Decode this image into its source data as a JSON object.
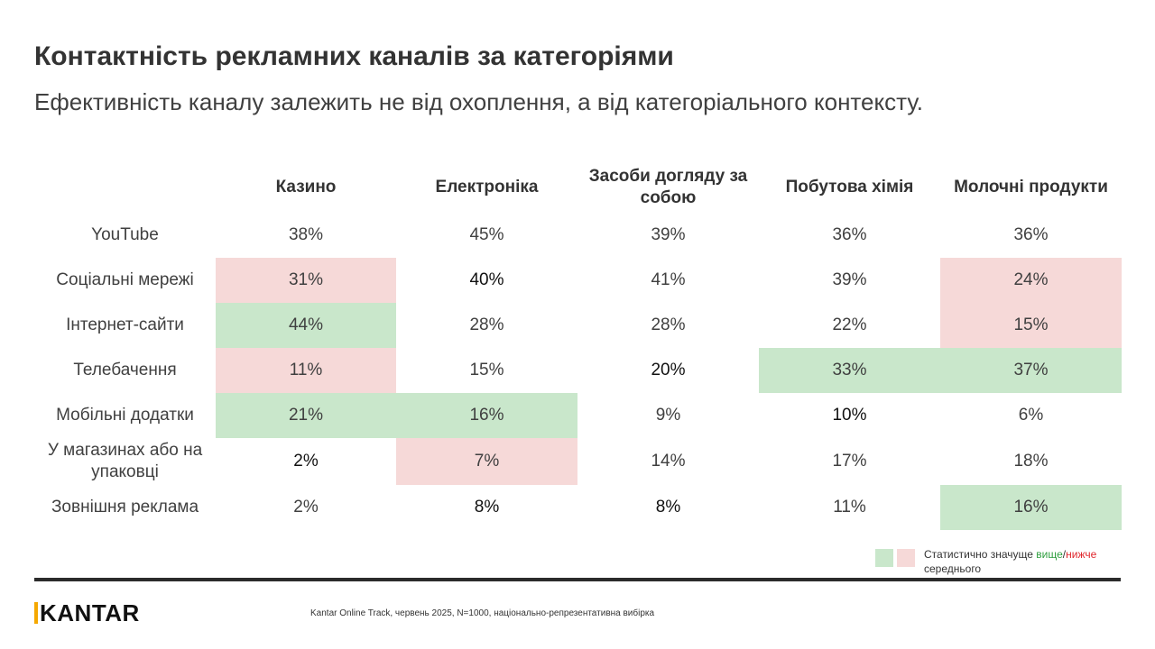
{
  "title": "Контактність рекламних каналів за категоріями",
  "subtitle": "Ефективність каналу залежить не від охоплення, а від категоріального контексту.",
  "chart_data": {
    "type": "table",
    "columns": [
      "Казино",
      "Електроніка",
      "Засоби догляду за собою",
      "Побутова хімія",
      "Молочні продукти"
    ],
    "rows": [
      {
        "label": "YouTube",
        "values": [
          "38%",
          "45%",
          "39%",
          "36%",
          "36%"
        ],
        "significance": [
          "",
          "",
          "",
          "",
          ""
        ],
        "bold": [
          false,
          false,
          false,
          false,
          false
        ]
      },
      {
        "label": "Соціальні мережі",
        "values": [
          "31%",
          "40%",
          "41%",
          "39%",
          "24%"
        ],
        "significance": [
          "lower",
          "",
          "",
          "",
          "lower"
        ],
        "bold": [
          false,
          true,
          false,
          false,
          false
        ]
      },
      {
        "label": "Інтернет-сайти",
        "values": [
          "44%",
          "28%",
          "28%",
          "22%",
          "15%"
        ],
        "significance": [
          "higher",
          "",
          "",
          "",
          "lower"
        ],
        "bold": [
          false,
          false,
          false,
          false,
          false
        ]
      },
      {
        "label": "Телебачення",
        "values": [
          "11%",
          "15%",
          "20%",
          "33%",
          "37%"
        ],
        "significance": [
          "lower",
          "",
          "",
          "higher",
          "higher"
        ],
        "bold": [
          false,
          false,
          true,
          false,
          false
        ]
      },
      {
        "label": "Мобільні додатки",
        "values": [
          "21%",
          "16%",
          "9%",
          "10%",
          "6%"
        ],
        "significance": [
          "higher",
          "higher",
          "",
          "",
          ""
        ],
        "bold": [
          false,
          false,
          false,
          true,
          false
        ]
      },
      {
        "label": "У магазинах або на упаковці",
        "values": [
          "2%",
          "7%",
          "14%",
          "17%",
          "18%"
        ],
        "significance": [
          "",
          "lower",
          "",
          "",
          ""
        ],
        "bold": [
          true,
          false,
          false,
          false,
          false
        ]
      },
      {
        "label": "Зовнішня реклама",
        "values": [
          "2%",
          "8%",
          "8%",
          "11%",
          "16%"
        ],
        "significance": [
          "",
          "",
          "",
          "",
          "higher"
        ],
        "bold": [
          false,
          true,
          true,
          false,
          false
        ]
      }
    ]
  },
  "legend": {
    "text_before": "Статистично значуще ",
    "higher_word": "вище",
    "separator": "/",
    "lower_word": "нижче",
    "text_after": " середнього",
    "colors": {
      "higher": "#c9e7cb",
      "lower": "#f6d9d8",
      "higher_text": "#2e9e3e",
      "lower_text": "#e0262c"
    }
  },
  "footer": {
    "logo": "KANTAR",
    "source": "Kantar Online Track, червень 2025, N=1000, національно-репрезентативна вибірка"
  }
}
